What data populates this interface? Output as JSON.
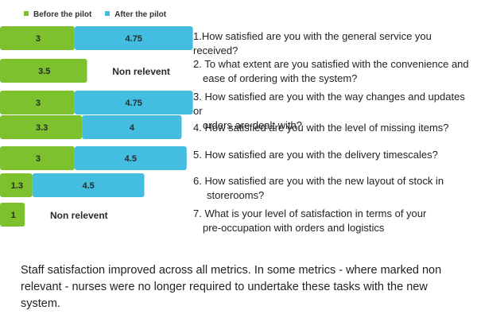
{
  "legend": [
    {
      "label": "Before the pilot",
      "color": "#7dc12e"
    },
    {
      "label": "After the pilot",
      "color": "#43bde0"
    }
  ],
  "chart_data": {
    "type": "bar",
    "orientation": "horizontal",
    "stacked": true,
    "categories": [
      "1",
      "2",
      "3",
      "4",
      "5",
      "6",
      "7"
    ],
    "series": [
      {
        "name": "Before the pilot",
        "color": "#7dc12e",
        "values": [
          3,
          3.5,
          3,
          3.3,
          3,
          1.3,
          1
        ],
        "labels": [
          "3",
          "3.5",
          "3",
          "3.3",
          "3",
          "1.3",
          "1"
        ]
      },
      {
        "name": "After the pilot",
        "color": "#43bde0",
        "values": [
          4.75,
          null,
          4.75,
          4,
          4.5,
          4.5,
          null
        ],
        "labels": [
          "4.75",
          "Non relevent",
          "4.75",
          "4",
          "4.5",
          "4.5",
          "Non relevent"
        ]
      }
    ],
    "legend_position": "top-left",
    "grid": false
  },
  "questions": [
    [
      "1.How satisfied are you with the general service  you received?"
    ],
    [
      "2. To what extent are you satisfied with the convenience and",
      "ease of ordering with the system?"
    ],
    [
      "3. How satisfied are you with the way changes and updates or",
      "orders are dealt with?"
    ],
    [
      "4. How satisfied are you with the level of missing items?"
    ],
    [
      "5. How satisfied are you with the delivery timescales?"
    ],
    [
      "6. How satisfied are you with the new layout of stock in",
      "storerooms?"
    ],
    [
      "7. What is your level of satisfaction in terms of your",
      "pre-occupation with orders and logistics"
    ]
  ],
  "caption": "Staff satisfaction improved across all metrics. In some metrics - where marked non relevant - nurses were no longer required to undertake these tasks with the new system."
}
